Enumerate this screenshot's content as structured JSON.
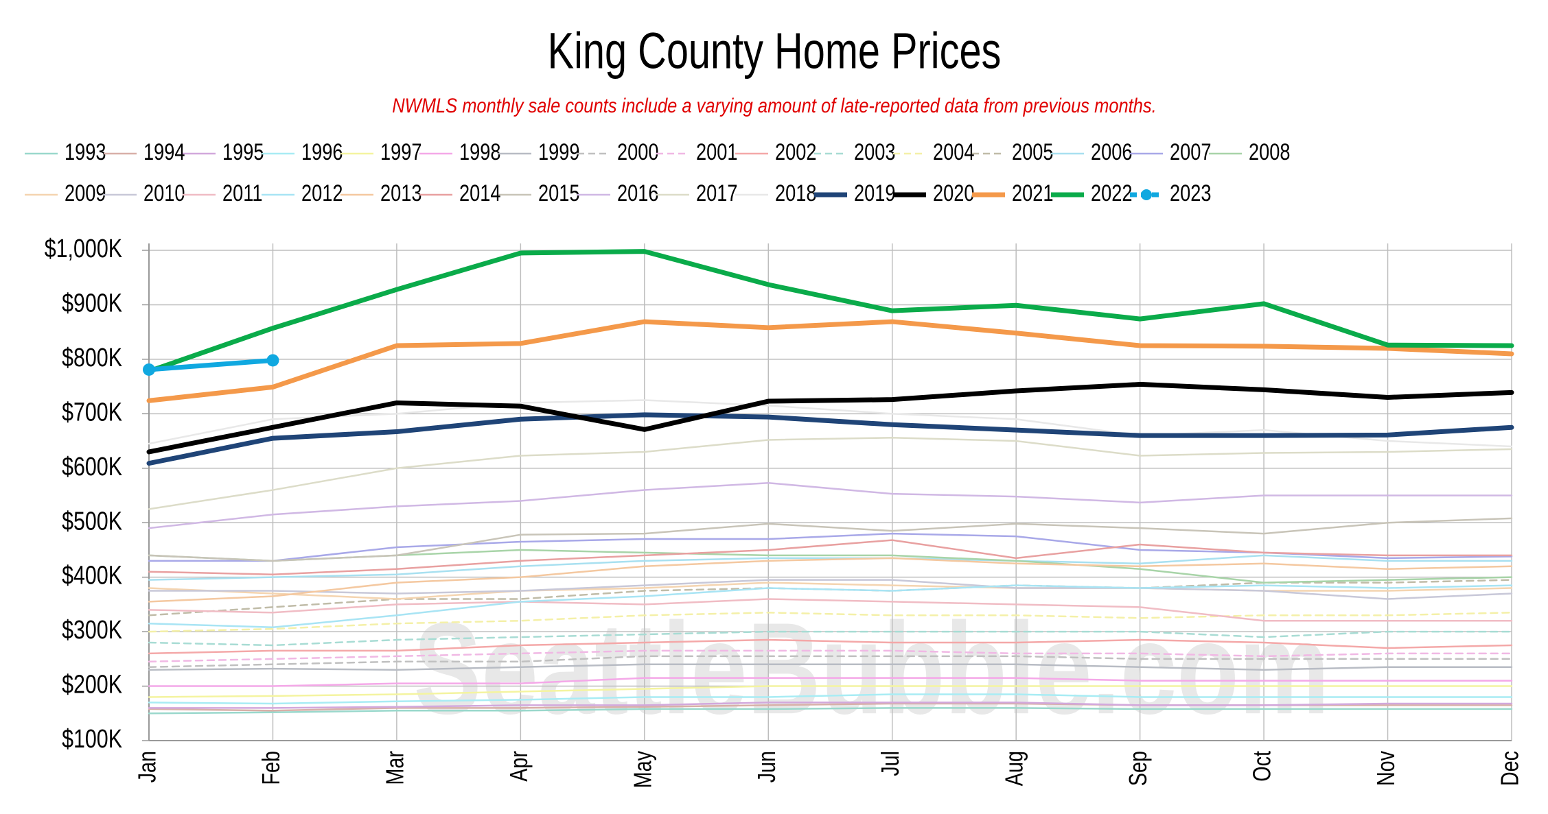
{
  "chart_data": {
    "type": "line",
    "title": "King County Home Prices",
    "subtitle": "NWMLS monthly sale counts include a varying amount of late-reported data from previous months.",
    "watermark": "SeattleBubble.com",
    "categories": [
      "Jan",
      "Feb",
      "Mar",
      "Apr",
      "May",
      "Jun",
      "Jul",
      "Aug",
      "Sep",
      "Oct",
      "Nov",
      "Dec"
    ],
    "ylim": [
      100,
      1000
    ],
    "yticks": [
      {
        "value": 100,
        "label": "$100K"
      },
      {
        "value": 200,
        "label": "$200K"
      },
      {
        "value": 300,
        "label": "$300K"
      },
      {
        "value": 400,
        "label": "$400K"
      },
      {
        "value": 500,
        "label": "$500K"
      },
      {
        "value": 600,
        "label": "$600K"
      },
      {
        "value": 700,
        "label": "$700K"
      },
      {
        "value": 800,
        "label": "$800K"
      },
      {
        "value": 900,
        "label": "$900K"
      },
      {
        "value": 1000,
        "label": "$1,000K"
      }
    ],
    "grid": true,
    "series": [
      {
        "name": "1993",
        "color": "#9ad8cc",
        "values": [
          150,
          152,
          155,
          155,
          158,
          158,
          160,
          160,
          158,
          158,
          158,
          158
        ]
      },
      {
        "name": "1994",
        "color": "#d8b0a8",
        "values": [
          158,
          155,
          160,
          160,
          162,
          165,
          168,
          168,
          165,
          165,
          165,
          165
        ]
      },
      {
        "name": "1995",
        "color": "#d2a8dc",
        "values": [
          160,
          160,
          162,
          165,
          165,
          170,
          170,
          170,
          165,
          165,
          168,
          168
        ]
      },
      {
        "name": "1996",
        "color": "#a8ecf4",
        "values": [
          170,
          168,
          172,
          175,
          180,
          180,
          185,
          185,
          180,
          180,
          180,
          180
        ]
      },
      {
        "name": "1997",
        "color": "#f4f4a0",
        "values": [
          180,
          182,
          185,
          190,
          195,
          200,
          200,
          200,
          200,
          200,
          200,
          200
        ]
      },
      {
        "name": "1998",
        "color": "#f4a8e8",
        "values": [
          200,
          200,
          205,
          205,
          215,
          215,
          215,
          215,
          210,
          210,
          210,
          210
        ]
      },
      {
        "name": "1999",
        "color": "#b8bcc4",
        "values": [
          230,
          232,
          230,
          235,
          240,
          240,
          240,
          240,
          235,
          230,
          235,
          235
        ]
      },
      {
        "name": "2000",
        "color": "#c0c0c0",
        "dash": true,
        "values": [
          235,
          240,
          245,
          245,
          255,
          255,
          255,
          255,
          250,
          250,
          250,
          250
        ]
      },
      {
        "name": "2001",
        "color": "#f0b8e4",
        "dash": true,
        "values": [
          245,
          250,
          255,
          260,
          265,
          265,
          265,
          260,
          260,
          255,
          260,
          260
        ]
      },
      {
        "name": "2002",
        "color": "#f4a8a8",
        "values": [
          260,
          265,
          265,
          275,
          280,
          285,
          280,
          280,
          285,
          280,
          270,
          275
        ]
      },
      {
        "name": "2003",
        "color": "#a8dcd4",
        "dash": true,
        "values": [
          280,
          275,
          285,
          290,
          295,
          300,
          300,
          300,
          300,
          290,
          300,
          300
        ]
      },
      {
        "name": "2004",
        "color": "#f4f0a8",
        "dash": true,
        "values": [
          300,
          305,
          315,
          320,
          330,
          335,
          330,
          330,
          325,
          330,
          330,
          335
        ]
      },
      {
        "name": "2005",
        "color": "#c0bca8",
        "dash": true,
        "values": [
          330,
          345,
          360,
          360,
          375,
          380,
          375,
          385,
          380,
          390,
          390,
          395
        ]
      },
      {
        "name": "2006",
        "color": "#a8e0f0",
        "values": [
          395,
          400,
          405,
          420,
          430,
          435,
          435,
          430,
          425,
          440,
          430,
          430
        ]
      },
      {
        "name": "2007",
        "color": "#a8a8e8",
        "values": [
          430,
          430,
          455,
          465,
          470,
          470,
          480,
          475,
          450,
          445,
          435,
          438
        ]
      },
      {
        "name": "2008",
        "color": "#a8d4a8",
        "values": [
          440,
          430,
          440,
          450,
          445,
          440,
          440,
          430,
          415,
          390,
          395,
          400
        ]
      },
      {
        "name": "2009",
        "color": "#f4d4b0",
        "values": [
          380,
          370,
          360,
          375,
          380,
          390,
          385,
          380,
          380,
          375,
          375,
          380
        ]
      },
      {
        "name": "2010",
        "color": "#c8c8d8",
        "values": [
          375,
          375,
          370,
          375,
          385,
          395,
          395,
          380,
          380,
          375,
          360,
          370
        ]
      },
      {
        "name": "2011",
        "color": "#f0bcc4",
        "values": [
          340,
          335,
          350,
          355,
          350,
          360,
          355,
          350,
          345,
          320,
          320,
          320
        ]
      },
      {
        "name": "2012",
        "color": "#a8e4f4",
        "values": [
          315,
          308,
          330,
          355,
          365,
          380,
          375,
          385,
          380,
          385,
          380,
          385
        ]
      },
      {
        "name": "2013",
        "color": "#f4c8a0",
        "values": [
          355,
          365,
          390,
          400,
          420,
          430,
          435,
          425,
          420,
          425,
          415,
          420
        ]
      },
      {
        "name": "2014",
        "color": "#e8a0a0",
        "values": [
          410,
          405,
          415,
          430,
          440,
          450,
          468,
          435,
          460,
          445,
          440,
          440
        ]
      },
      {
        "name": "2015",
        "color": "#c8c4b8",
        "values": [
          440,
          430,
          440,
          478,
          480,
          498,
          485,
          498,
          490,
          480,
          500,
          508
        ]
      },
      {
        "name": "2016",
        "color": "#d0b8e4",
        "values": [
          490,
          515,
          530,
          540,
          560,
          573,
          553,
          548,
          537,
          550,
          550,
          550
        ]
      },
      {
        "name": "2017",
        "color": "#dcdcc8",
        "values": [
          525,
          560,
          600,
          623,
          630,
          652,
          656,
          650,
          623,
          628,
          630,
          635
        ]
      },
      {
        "name": "2018",
        "color": "#e8e8e8",
        "values": [
          645,
          690,
          700,
          720,
          725,
          715,
          700,
          690,
          660,
          670,
          650,
          640
        ]
      },
      {
        "name": "2019",
        "color": "#1f4477",
        "bold": true,
        "values": [
          609,
          655,
          667,
          690,
          698,
          694,
          680,
          670,
          660,
          660,
          661,
          675
        ]
      },
      {
        "name": "2020",
        "color": "#000000",
        "bold": true,
        "values": [
          630,
          675,
          720,
          714,
          671,
          723,
          726,
          742,
          754,
          744,
          730,
          739
        ]
      },
      {
        "name": "2021",
        "color": "#f4994a",
        "bold": true,
        "values": [
          724,
          749,
          825,
          829,
          869,
          858,
          869,
          848,
          825,
          824,
          820,
          810
        ]
      },
      {
        "name": "2022",
        "color": "#0aab4a",
        "bold": true,
        "values": [
          778,
          857,
          928,
          995,
          998,
          937,
          889,
          899,
          874,
          902,
          826,
          825
        ]
      },
      {
        "name": "2023",
        "color": "#10a8e0",
        "bold": true,
        "markers": true,
        "values": [
          781,
          798,
          null,
          null,
          null,
          null,
          null,
          null,
          null,
          null,
          null,
          null
        ]
      }
    ]
  }
}
